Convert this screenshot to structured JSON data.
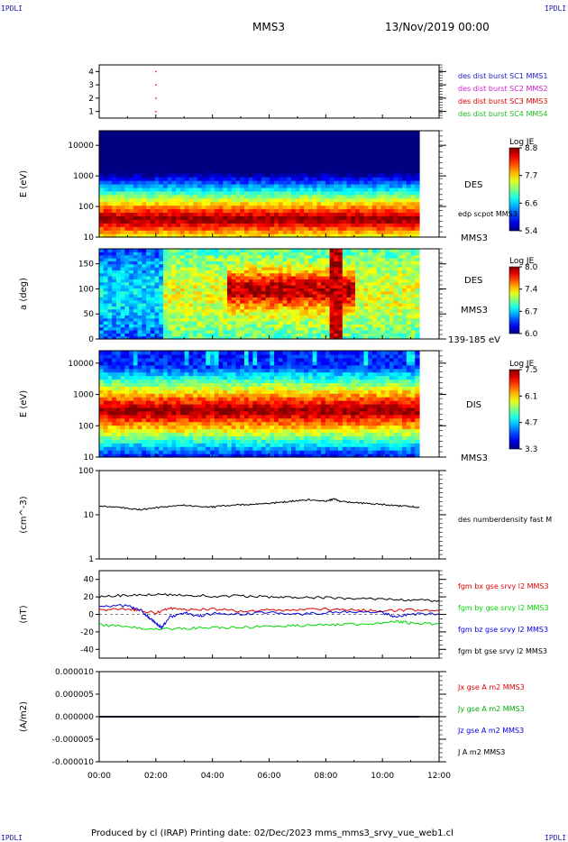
{
  "corners": {
    "tl": "IPDLI",
    "tr": "IPDLI",
    "bl": "IPDLI",
    "br": "IPDLI"
  },
  "header": {
    "spacecraft": "MMS3",
    "datetime": "13/Nov/2019 00:00"
  },
  "footer": {
    "text": "Produced by cl (IRAP)   Printing date: 02/Dec/2023   mms_mms3_srvy_vue_web1.cl"
  },
  "chart_data": [
    {
      "type": "scatter",
      "ylim": [
        0.5,
        4.5
      ],
      "yticks": [
        "1",
        "2",
        "3",
        "4"
      ],
      "points": [
        {
          "x": 2.0,
          "y": 1,
          "color": "#dd0000"
        },
        {
          "x": 2.0,
          "y": 2,
          "color": "#dd0000"
        },
        {
          "x": 2.0,
          "y": 3,
          "color": "#dd0000"
        },
        {
          "x": 2.0,
          "y": 4,
          "color": "#dd0000"
        }
      ],
      "legend": [
        {
          "label": "des dist burst SC1 MMS1",
          "color": "#1a1acc"
        },
        {
          "label": "des dist burst SC2 MMS2",
          "color": "#cc22cc"
        },
        {
          "label": "des dist burst SC3 MMS3",
          "color": "#dd0000"
        },
        {
          "label": "des dist burst SC4 MMS4",
          "color": "#22bb22"
        }
      ]
    },
    {
      "type": "heatmap",
      "ylabel": "E (eV)",
      "yscale": "log",
      "ylim": [
        10,
        30000
      ],
      "yticks": [
        "10",
        "100",
        "1000",
        "10000"
      ],
      "data_end_hour": 11.3,
      "labels": [
        "DES",
        "edp scpot MMS3",
        "MMS3"
      ],
      "colorbar": {
        "title": "Log JE",
        "min": 5.4,
        "max": 8.8,
        "ticks": [
          "8.8",
          "7.7",
          "6.6",
          "5.4"
        ]
      }
    },
    {
      "type": "heatmap",
      "ylabel": "a (deg)",
      "ylim": [
        0,
        180
      ],
      "yticks": [
        "0",
        "50",
        "100",
        "150"
      ],
      "data_end_hour": 11.3,
      "labels": [
        "DES",
        "MMS3",
        "139-185 eV"
      ],
      "colorbar": {
        "title": "Log JE",
        "min": 6.0,
        "max": 8.0,
        "ticks": [
          "8.0",
          "7.4",
          "6.7",
          "6.0"
        ]
      }
    },
    {
      "type": "heatmap",
      "ylabel": "E (eV)",
      "yscale": "log",
      "ylim": [
        10,
        25000
      ],
      "yticks": [
        "10",
        "100",
        "1000",
        "10000"
      ],
      "data_end_hour": 11.3,
      "labels": [
        "DIS",
        "MMS3"
      ],
      "colorbar": {
        "title": "Log JE",
        "min": 3.3,
        "max": 7.5,
        "ticks": [
          "7.5",
          "6.1",
          "4.7",
          "3.3"
        ]
      }
    },
    {
      "type": "line",
      "ylabel": "(cm^-3)",
      "yscale": "log",
      "ylim": [
        1,
        100
      ],
      "yticks": [
        "1",
        "10",
        "100"
      ],
      "series": [
        {
          "name": "des numberdensity fast M",
          "color": "#000000",
          "x": [
            0.0,
            0.5,
            1.0,
            1.5,
            2.0,
            2.5,
            3.0,
            3.5,
            4.0,
            4.5,
            5.0,
            5.5,
            6.0,
            6.5,
            7.0,
            7.5,
            8.0,
            8.3,
            8.5,
            9.0,
            9.5,
            10.0,
            10.5,
            11.0,
            11.3
          ],
          "y": [
            15.5,
            15.0,
            14.0,
            13.0,
            14.5,
            15.5,
            16.5,
            15.5,
            15.0,
            16.0,
            17.0,
            17.5,
            18.0,
            19.5,
            21.0,
            22.0,
            20.0,
            23.0,
            20.0,
            19.0,
            18.0,
            17.0,
            16.0,
            15.5,
            14.5
          ]
        }
      ]
    },
    {
      "type": "line",
      "ylabel": "(nT)",
      "ylim": [
        -50,
        50
      ],
      "yticks": [
        "-40",
        "-20",
        "0",
        "20",
        "40"
      ],
      "series": [
        {
          "name": "fgm bx gse srvy l2 MMS3",
          "color": "#e00000",
          "x": [
            0,
            1,
            1.5,
            2,
            2.5,
            3,
            4,
            5,
            6,
            7,
            8,
            9,
            10,
            11,
            12
          ],
          "y": [
            5,
            6,
            4,
            2,
            7,
            5,
            6,
            4,
            5,
            5,
            6,
            5,
            4,
            5,
            4
          ]
        },
        {
          "name": "fgm by gse srvy l2 MMS3",
          "color": "#00d800",
          "x": [
            0,
            1,
            2,
            3,
            4,
            5,
            6,
            7,
            8,
            9,
            10,
            10.5,
            11,
            12
          ],
          "y": [
            -12,
            -14,
            -17,
            -16,
            -15,
            -15,
            -14,
            -13,
            -12,
            -11,
            -10,
            -8,
            -10,
            -11
          ]
        },
        {
          "name": "fgm bz gse srvy l2 MMS3",
          "color": "#0000e0",
          "x": [
            0,
            1,
            1.5,
            1.8,
            2.0,
            2.2,
            2.5,
            3,
            3.5,
            4,
            5,
            6,
            7,
            8,
            9,
            10,
            10.5,
            11,
            12
          ],
          "y": [
            10,
            10,
            4,
            -5,
            -10,
            -15,
            -3,
            2,
            -2,
            1,
            0,
            3,
            0,
            2,
            3,
            2,
            -3,
            0,
            1
          ]
        },
        {
          "name": "fgm bt gse srvy l2 MMS3",
          "color": "#000000",
          "x": [
            0,
            1,
            2,
            3,
            4,
            5,
            6,
            7,
            8,
            9,
            10,
            11,
            12
          ],
          "y": [
            20,
            22,
            23,
            22,
            21,
            21,
            20,
            19,
            19,
            18,
            17,
            16,
            16
          ]
        }
      ]
    },
    {
      "type": "line",
      "ylabel": "(A/m2)",
      "ylim": [
        -1e-05,
        1e-05
      ],
      "yticks": [
        "-0.000010",
        "-0.000005",
        "0.000000",
        "0.000005",
        "0.000010"
      ],
      "series": [
        {
          "name": "Jx gse A m2 MMS3",
          "color": "#e00000",
          "x": [
            0,
            11.3
          ],
          "y": [
            0,
            0
          ]
        },
        {
          "name": "Jy gse A m2 MMS3",
          "color": "#00b000",
          "x": [
            0,
            11.3
          ],
          "y": [
            0,
            0
          ]
        },
        {
          "name": "Jz gse A m2 MMS3",
          "color": "#0000e0",
          "x": [
            0,
            11.3
          ],
          "y": [
            0,
            0
          ]
        },
        {
          "name": "J A m2 MMS3",
          "color": "#000000",
          "x": [
            0,
            12
          ],
          "y": [
            0,
            0
          ]
        }
      ]
    }
  ],
  "xaxis": {
    "range": [
      0,
      12
    ],
    "ticks": [
      "00:00",
      "02:00",
      "04:00",
      "06:00",
      "08:00",
      "10:00",
      "12:00"
    ]
  }
}
